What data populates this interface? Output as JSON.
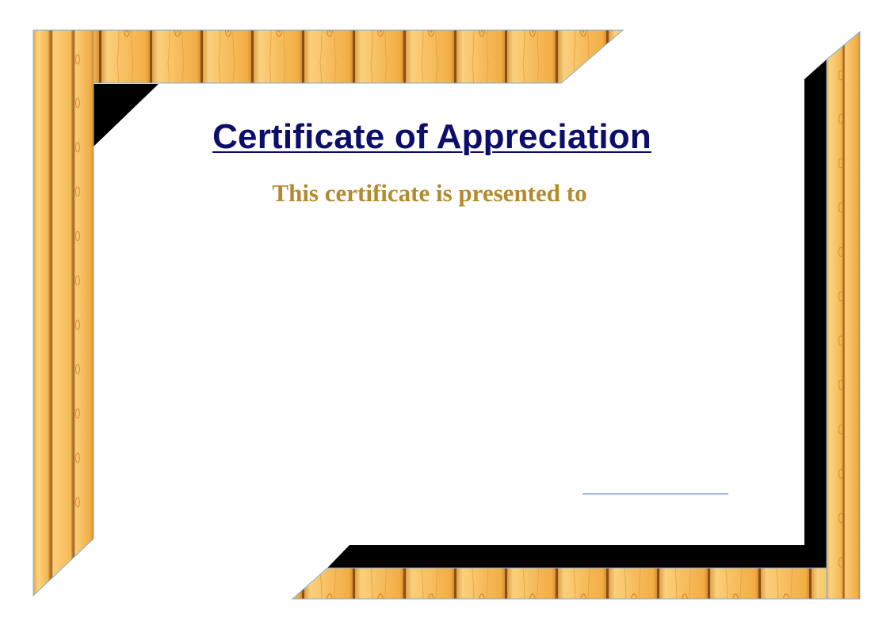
{
  "certificate": {
    "title": "Certificate of Appreciation",
    "subtitle": "This certificate is presented to"
  },
  "colors": {
    "title": "#0d0d6b",
    "subtitle": "#b48a2c",
    "wood_light": "#f9c56a",
    "wood_mid": "#f2ad44",
    "wood_dark": "#c47b22",
    "edge_blue": "#7fb3d8",
    "shadow": "#000000",
    "signature_line": "#2a64c8"
  }
}
